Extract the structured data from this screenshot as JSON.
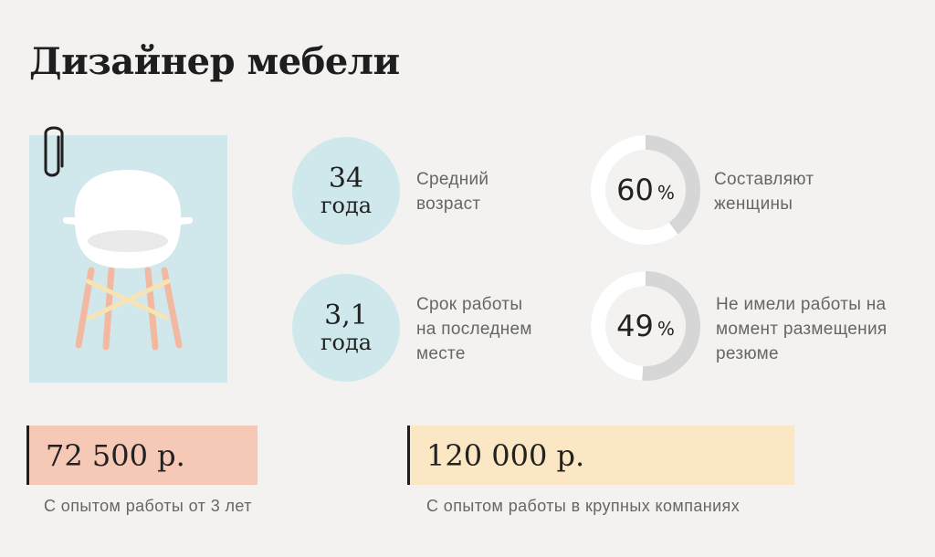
{
  "title": "Дизайнер мебели",
  "stats": [
    {
      "number": "34",
      "unit": "года",
      "label_lines": [
        "Средний",
        "возраст"
      ]
    },
    {
      "number": "3,1",
      "unit": "года",
      "label_lines": [
        "Срок работы",
        "на последнем",
        "месте"
      ]
    }
  ],
  "percents": [
    {
      "value": 60,
      "value_text": "60",
      "symbol": "%",
      "label_lines": [
        "Составляют",
        "женщины"
      ]
    },
    {
      "value": 49,
      "value_text": "49",
      "symbol": "%",
      "label_lines": [
        "Не имели работы на",
        "момент размещения",
        "резюме"
      ]
    }
  ],
  "salaries": [
    {
      "amount": "72 500 р.",
      "note": "С опытом работы от 3 лет",
      "color": "#f6c9b7"
    },
    {
      "amount": "120 000 р.",
      "note": "С опытом работы в крупных компаниях",
      "color": "#fbe7c4"
    }
  ],
  "colors": {
    "background": "#f3f2f0",
    "circle_fill": "#cfe8ec",
    "donut_track": "#d6d6d6",
    "donut_center": "#f3f2f0",
    "illustration_bg": "#d0e8ec",
    "chair_seat": "#ffffff",
    "chair_legs": "#f2b9a0",
    "chair_braces": "#f8e3b5"
  },
  "icons": {
    "clip": "paperclip-icon",
    "chair": "chair-illustration"
  }
}
